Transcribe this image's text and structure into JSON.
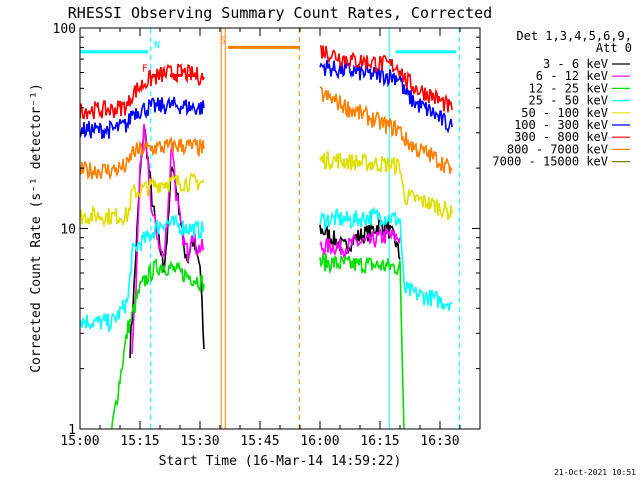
{
  "chart_data": {
    "type": "line",
    "title": "RHESSI Observing Summary Count Rates, Corrected",
    "xlabel": "Start Time (16-Mar-14 14:59:22)",
    "ylabel": "Corrected Count Rate (s⁻¹ detector⁻¹)",
    "yscale": "log",
    "ylim": [
      1,
      100
    ],
    "xlim_minutes": [
      0,
      100
    ],
    "x_ticks": [
      {
        "label": "15:00",
        "t": 0
      },
      {
        "label": "15:15",
        "t": 15
      },
      {
        "label": "15:30",
        "t": 30
      },
      {
        "label": "15:45",
        "t": 45
      },
      {
        "label": "16:00",
        "t": 60
      },
      {
        "label": "16:15",
        "t": 75
      },
      {
        "label": "16:30",
        "t": 90
      }
    ],
    "y_ticks": [
      {
        "label": "1",
        "v": 1
      },
      {
        "label": "10",
        "v": 10
      },
      {
        "label": "100",
        "v": 100
      }
    ],
    "legend_header": [
      "Det 1,3,4,5,6,9,",
      "Att 0"
    ],
    "legend_position": "top-right",
    "series": [
      {
        "name": "3 - 6 keV",
        "color": "#000000",
        "seg1": [
          [
            12.5,
            2.5
          ],
          [
            13.5,
            5
          ],
          [
            15,
            18
          ],
          [
            16,
            33
          ],
          [
            17,
            22
          ],
          [
            18,
            14
          ],
          [
            19,
            10
          ],
          [
            20,
            8
          ],
          [
            21,
            6.5
          ],
          [
            22,
            10
          ],
          [
            23,
            22
          ],
          [
            24,
            16
          ],
          [
            25,
            12
          ],
          [
            26,
            8
          ],
          [
            27,
            7
          ],
          [
            28,
            9
          ],
          [
            29,
            7.5
          ],
          [
            30,
            6.5
          ],
          [
            31,
            2.5
          ]
        ],
        "seg2": [
          [
            60,
            10
          ],
          [
            63,
            9
          ],
          [
            66,
            8
          ],
          [
            69,
            9
          ],
          [
            72,
            9.5
          ],
          [
            75,
            10.5
          ],
          [
            77,
            10
          ],
          [
            79,
            8.5
          ],
          [
            80,
            7
          ]
        ]
      },
      {
        "name": "6 - 12 keV",
        "color": "#ff00ff",
        "seg1": [
          [
            13,
            2.5
          ],
          [
            14,
            5
          ],
          [
            15,
            20
          ],
          [
            16,
            30
          ],
          [
            17,
            20
          ],
          [
            18,
            12
          ],
          [
            19,
            10
          ],
          [
            20,
            8
          ],
          [
            21,
            7
          ],
          [
            22,
            13
          ],
          [
            23,
            28
          ],
          [
            24,
            15
          ],
          [
            25,
            11
          ],
          [
            26,
            8.5
          ],
          [
            27,
            7.5
          ],
          [
            28,
            10
          ],
          [
            29,
            8
          ],
          [
            30,
            8
          ],
          [
            31,
            8
          ]
        ],
        "seg2": [
          [
            60,
            8
          ],
          [
            63,
            8.2
          ],
          [
            66,
            8
          ],
          [
            69,
            8.5
          ],
          [
            72,
            8.5
          ],
          [
            75,
            9
          ],
          [
            77,
            9.2
          ],
          [
            80,
            9
          ]
        ]
      },
      {
        "name": "12 - 25 keV",
        "color": "#00e000",
        "seg1": [
          [
            0,
            0.1
          ],
          [
            12,
            3.2
          ],
          [
            13,
            3.6
          ],
          [
            14,
            4.3
          ],
          [
            15,
            5
          ],
          [
            17,
            5.8
          ],
          [
            19,
            6.4
          ],
          [
            21,
            6.5
          ],
          [
            23,
            6.3
          ],
          [
            25,
            6
          ],
          [
            27,
            5.8
          ],
          [
            29,
            5.6
          ],
          [
            31,
            5.3
          ]
        ],
        "seg2": [
          [
            60,
            6.8
          ],
          [
            64,
            6.7
          ],
          [
            68,
            6.6
          ],
          [
            72,
            6.6
          ],
          [
            76,
            6.5
          ],
          [
            80,
            6.4
          ],
          [
            81,
            1
          ],
          [
            82,
            0.1
          ]
        ]
      },
      {
        "name": "25 - 50 keV",
        "color": "#00ffff",
        "seg1": [
          [
            0,
            3.5
          ],
          [
            4,
            3.4
          ],
          [
            8,
            3.4
          ],
          [
            10,
            3.8
          ],
          [
            12,
            4.4
          ],
          [
            13,
            7.5
          ],
          [
            15,
            8.5
          ],
          [
            17,
            9
          ],
          [
            19,
            10
          ],
          [
            21,
            10.8
          ],
          [
            23,
            10.5
          ],
          [
            25,
            10.3
          ],
          [
            27,
            10.1
          ],
          [
            29,
            9.9
          ],
          [
            31,
            9.8
          ]
        ],
        "seg2": [
          [
            60,
            11
          ],
          [
            64,
            11.2
          ],
          [
            68,
            11
          ],
          [
            72,
            11.4
          ],
          [
            75,
            11.6
          ],
          [
            78,
            11.3
          ],
          [
            80,
            11
          ],
          [
            81,
            5
          ],
          [
            84,
            4.7
          ],
          [
            88,
            4.5
          ],
          [
            91,
            4.3
          ],
          [
            93,
            4.3
          ]
        ]
      },
      {
        "name": "50 - 100 keV",
        "color": "#e0e000",
        "seg1": [
          [
            0,
            11.5
          ],
          [
            4,
            11.6
          ],
          [
            8,
            11.5
          ],
          [
            12,
            11.6
          ],
          [
            13,
            15
          ],
          [
            17,
            16
          ],
          [
            21,
            17
          ],
          [
            25,
            17
          ],
          [
            29,
            17
          ],
          [
            31,
            17
          ]
        ],
        "seg2": [
          [
            60,
            22
          ],
          [
            64,
            22
          ],
          [
            68,
            21.5
          ],
          [
            72,
            21.2
          ],
          [
            76,
            21
          ],
          [
            80,
            20.5
          ],
          [
            81,
            14.5
          ],
          [
            84,
            14
          ],
          [
            88,
            13.2
          ],
          [
            91,
            12.5
          ],
          [
            93,
            11.8
          ]
        ]
      },
      {
        "name": "100 - 300 keV",
        "color": "#0000ff",
        "seg1": [
          [
            0,
            31
          ],
          [
            4,
            31
          ],
          [
            8,
            31
          ],
          [
            12,
            33
          ],
          [
            13,
            38
          ],
          [
            17,
            40
          ],
          [
            21,
            41
          ],
          [
            25,
            41
          ],
          [
            29,
            40
          ],
          [
            31,
            40
          ]
        ],
        "seg2": [
          [
            60,
            65
          ],
          [
            64,
            62
          ],
          [
            68,
            61
          ],
          [
            72,
            59
          ],
          [
            76,
            58
          ],
          [
            80,
            57
          ],
          [
            81,
            48
          ],
          [
            84,
            42
          ],
          [
            88,
            38
          ],
          [
            91,
            34
          ],
          [
            93,
            32
          ]
        ]
      },
      {
        "name": "300 - 800 keV",
        "color": "#ff0000",
        "seg1": [
          [
            0,
            39
          ],
          [
            4,
            39
          ],
          [
            8,
            39
          ],
          [
            12,
            41
          ],
          [
            13,
            47
          ],
          [
            17,
            55
          ],
          [
            21,
            59
          ],
          [
            25,
            60
          ],
          [
            29,
            58
          ],
          [
            31,
            57
          ]
        ],
        "seg2": [
          [
            60,
            78
          ],
          [
            64,
            73
          ],
          [
            68,
            69
          ],
          [
            72,
            68
          ],
          [
            76,
            66
          ],
          [
            80,
            64
          ],
          [
            81,
            56
          ],
          [
            84,
            50
          ],
          [
            88,
            46
          ],
          [
            91,
            42
          ],
          [
            93,
            39
          ]
        ]
      },
      {
        "name": "800 - 7000 keV",
        "color": "#ff8000",
        "seg1": [
          [
            0,
            19.5
          ],
          [
            4,
            19.5
          ],
          [
            8,
            19.5
          ],
          [
            12,
            20.5
          ],
          [
            13,
            24
          ],
          [
            17,
            25
          ],
          [
            21,
            25.5
          ],
          [
            25,
            26
          ],
          [
            29,
            25.5
          ],
          [
            31,
            25
          ]
        ],
        "seg2": [
          [
            60,
            47
          ],
          [
            64,
            43
          ],
          [
            68,
            39
          ],
          [
            72,
            36
          ],
          [
            76,
            33
          ],
          [
            80,
            31
          ],
          [
            81,
            28
          ],
          [
            84,
            25
          ],
          [
            88,
            23
          ],
          [
            91,
            21
          ],
          [
            93,
            19.5
          ]
        ]
      },
      {
        "name": "7000 - 15000 keV",
        "color": "#808000",
        "seg1": [],
        "seg2": []
      }
    ],
    "annotations": {
      "bars": [
        {
          "label": "N",
          "color": "#00ffff",
          "y": 76,
          "spans": [
            [
              0,
              17
            ],
            [
              79,
              94
            ]
          ]
        },
        {
          "label": "F",
          "color": "#ff0000",
          "y": 58,
          "spans": [
            [
              18,
              29
            ]
          ]
        },
        {
          "label": "S",
          "color": "#ff8000",
          "y": 80,
          "spans": [
            [
              37,
              55
            ]
          ]
        }
      ],
      "vlines": [
        {
          "t": 17.7,
          "color": "#00ffff",
          "style": "dashed"
        },
        {
          "t": 35.3,
          "color": "#ff8000",
          "style": "solid"
        },
        {
          "t": 36.3,
          "color": "#ff8000",
          "style": "solid"
        },
        {
          "t": 54.8,
          "color": "#ff8000",
          "style": "dashed"
        },
        {
          "t": 77.3,
          "color": "#00ffff",
          "style": "solid"
        },
        {
          "t": 94.8,
          "color": "#00ffff",
          "style": "dashed"
        }
      ]
    },
    "grid": false,
    "footer": "21-Oct-2021 10:51"
  }
}
